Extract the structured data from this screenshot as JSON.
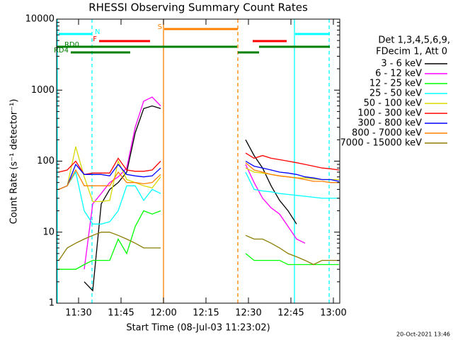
{
  "chart_data": {
    "type": "line",
    "title": "RHESSI Observing Summary Count Rates",
    "xlabel": "Start Time (08-Jul-03 11:23:02)",
    "ylabel": "Count Rate (s⁻¹ detector⁻¹)",
    "legend_title": [
      "Det 1,3,4,5,6,9,",
      "FDecim 1, Att 0"
    ],
    "footer": "20-Oct-2021 13:46",
    "log_y": true,
    "xlim": [
      682.25,
      782.25
    ],
    "ylim": [
      1,
      10000
    ],
    "xticks": [
      {
        "value": 690,
        "label": "11:30"
      },
      {
        "value": 705,
        "label": "11:45"
      },
      {
        "value": 720,
        "label": "12:00"
      },
      {
        "value": 735,
        "label": "12:15"
      },
      {
        "value": 750,
        "label": "12:30"
      },
      {
        "value": 765,
        "label": "12:45"
      },
      {
        "value": 780,
        "label": "13:00"
      }
    ],
    "yticks": [
      1,
      10,
      100,
      1000,
      10000
    ],
    "x": [
      683,
      686,
      689,
      692,
      695,
      698,
      701,
      704,
      707,
      710,
      713,
      716,
      719,
      735,
      749,
      752,
      755,
      758,
      761,
      764,
      767,
      770,
      773,
      776,
      779,
      782
    ],
    "series": [
      {
        "name": "3 - 6 keV",
        "color": "#000000",
        "values": [
          null,
          null,
          null,
          2,
          1.5,
          25,
          40,
          50,
          70,
          250,
          550,
          600,
          550,
          null,
          200,
          120,
          80,
          45,
          28,
          20,
          13,
          null,
          null,
          null,
          null,
          null
        ]
      },
      {
        "name": "6 - 12 keV",
        "color": "#ff00ff",
        "values": [
          null,
          null,
          null,
          3,
          25,
          35,
          50,
          60,
          80,
          300,
          700,
          800,
          600,
          null,
          90,
          50,
          30,
          22,
          18,
          12,
          8,
          7,
          null,
          null,
          null,
          null
        ]
      },
      {
        "name": "12 - 25 keV",
        "color": "#00ff00",
        "values": [
          3,
          3,
          3,
          3.5,
          4,
          4,
          4,
          8,
          5,
          12,
          20,
          18,
          20,
          null,
          5,
          4,
          4,
          4,
          4,
          3.5,
          3.5,
          3.5,
          3.5,
          3.5,
          3.5,
          3.5
        ]
      },
      {
        "name": "25 - 50 keV",
        "color": "#00ffff",
        "values": [
          40,
          45,
          70,
          20,
          13,
          13,
          14,
          20,
          45,
          45,
          28,
          40,
          35,
          null,
          70,
          40,
          38,
          37,
          35,
          34,
          33,
          32,
          31,
          30,
          30,
          30
        ]
      },
      {
        "name": "50 - 100 keV",
        "color": "#d8d800",
        "values": [
          40,
          45,
          160,
          60,
          27,
          27,
          28,
          100,
          55,
          50,
          45,
          42,
          60,
          null,
          80,
          70,
          68,
          65,
          62,
          60,
          58,
          58,
          56,
          55,
          55,
          55
        ]
      },
      {
        "name": "100 - 300 keV",
        "color": "#ff0000",
        "values": [
          70,
          75,
          100,
          65,
          68,
          68,
          68,
          110,
          75,
          72,
          72,
          75,
          100,
          null,
          130,
          110,
          120,
          110,
          105,
          100,
          95,
          90,
          85,
          80,
          78,
          75
        ]
      },
      {
        "name": "300 - 800 keV",
        "color": "#0000ff",
        "values": [
          40,
          45,
          90,
          65,
          65,
          65,
          62,
          90,
          65,
          62,
          60,
          62,
          80,
          null,
          100,
          85,
          80,
          75,
          70,
          68,
          65,
          60,
          58,
          55,
          55,
          52
        ]
      },
      {
        "name": "800 - 7000 keV",
        "color": "#ff8000",
        "values": [
          40,
          45,
          75,
          45,
          45,
          45,
          45,
          70,
          50,
          50,
          48,
          50,
          65,
          null,
          95,
          75,
          70,
          65,
          62,
          60,
          58,
          55,
          52,
          52,
          50,
          50
        ]
      },
      {
        "name": "7000 - 15000 keV",
        "color": "#8b7d00",
        "values": [
          4,
          6,
          7,
          8,
          9,
          10,
          10,
          9,
          8,
          7,
          6,
          6,
          6,
          null,
          9,
          8,
          8,
          7,
          6,
          5,
          4.5,
          4,
          3.5,
          4,
          4,
          4
        ]
      }
    ],
    "flags": [
      {
        "label": "S",
        "color": "#ff8000",
        "intervals": [
          [
            720.25,
            746.25
          ]
        ]
      },
      {
        "label": "N",
        "color": "#00ffff",
        "intervals": [
          [
            683,
            694.75
          ],
          [
            766.5,
            778.75
          ]
        ]
      },
      {
        "label": "F",
        "color": "#ff0000",
        "intervals": [
          [
            697.25,
            715.25
          ],
          [
            751.5,
            763.5
          ]
        ]
      },
      {
        "label": "RD0",
        "color": "#008000",
        "intervals": [
          [
            682.25,
            746
          ],
          [
            753.75,
            778.75
          ]
        ]
      },
      {
        "label": "RD4",
        "color": "#008000",
        "intervals": [
          [
            687.25,
            708.25
          ],
          [
            746.25,
            753.75
          ]
        ]
      }
    ],
    "vlines": [
      {
        "x": 720,
        "color": "#ff8000",
        "dashed": false
      },
      {
        "x": 746.25,
        "color": "#ff8000",
        "dashed": true
      },
      {
        "x": 682.5,
        "color": "#00ffff",
        "dashed": false
      },
      {
        "x": 766.25,
        "color": "#00ffff",
        "dashed": false
      },
      {
        "x": 694.75,
        "color": "#00ffff",
        "dashed": true
      },
      {
        "x": 778.5,
        "color": "#00ffff",
        "dashed": true
      }
    ]
  }
}
